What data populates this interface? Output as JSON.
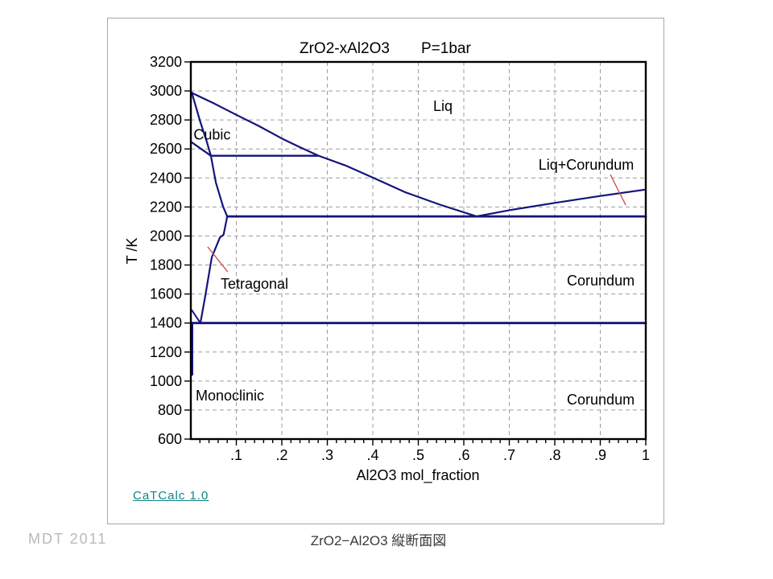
{
  "slide": {
    "credit": "MDT  2011",
    "caption": "ZrO2−Al2O3  縦断面図",
    "app_link": "CaTCalc 1.0"
  },
  "chart_data": {
    "type": "line",
    "title": "ZrO2-xAl2O3    P=1bar",
    "title_main": "ZrO2-xAl2O3",
    "title_pressure": "P=1bar",
    "xlabel": "Al2O3 mol_fraction",
    "ylabel": "T /K",
    "xlim": [
      0,
      1
    ],
    "ylim": [
      600,
      3200
    ],
    "x_major_ticks": [
      0.1,
      0.2,
      0.3,
      0.4,
      0.5,
      0.6,
      0.7,
      0.8,
      0.9,
      1
    ],
    "x_tick_labels": [
      ".1",
      ".2",
      ".3",
      ".4",
      ".5",
      ".6",
      ".7",
      ".8",
      ".9",
      "1"
    ],
    "x_minor_step": 0.02,
    "y_major_ticks": [
      600,
      800,
      1000,
      1200,
      1400,
      1600,
      1800,
      2000,
      2200,
      2400,
      2600,
      2800,
      3000,
      3200
    ],
    "grid": {
      "style": "dashed",
      "color": "#9c9c9c",
      "x_lines": [
        0.1,
        0.2,
        0.3,
        0.4,
        0.5,
        0.6,
        0.7,
        0.8,
        0.9
      ],
      "y_lines": [
        800,
        1000,
        1200,
        1400,
        1600,
        1800,
        2000,
        2200,
        2400,
        2600,
        2800,
        3000
      ]
    },
    "line_color": "#14147c",
    "leader_color": "#cc5555",
    "border_color": "#000000",
    "eutectic_point": {
      "x": 0.628,
      "T": 2135
    },
    "series": [
      {
        "name": "liquidus-left",
        "width": 2.2,
        "points": [
          [
            0,
            2990
          ],
          [
            0.05,
            2915
          ],
          [
            0.1,
            2835
          ],
          [
            0.15,
            2757
          ],
          [
            0.2,
            2672
          ],
          [
            0.24,
            2612
          ],
          [
            0.28,
            2554
          ],
          [
            0.34,
            2486
          ],
          [
            0.407,
            2393
          ],
          [
            0.47,
            2303
          ],
          [
            0.55,
            2213
          ],
          [
            0.628,
            2135
          ]
        ]
      },
      {
        "name": "liquidus-right",
        "width": 2.2,
        "points": [
          [
            0.628,
            2135
          ],
          [
            0.7,
            2178
          ],
          [
            0.8,
            2228
          ],
          [
            0.9,
            2276
          ],
          [
            1.0,
            2320
          ]
        ]
      },
      {
        "name": "cubic-solidus",
        "width": 2.2,
        "points": [
          [
            0.002,
            2990
          ],
          [
            0.02,
            2795
          ],
          [
            0.035,
            2650
          ],
          [
            0.044,
            2553
          ]
        ]
      },
      {
        "name": "cubic-tetragonal-boundary",
        "width": 2.2,
        "points": [
          [
            0,
            2650
          ],
          [
            0.044,
            2553
          ]
        ]
      },
      {
        "name": "transition-line-2553",
        "width": 2.4,
        "points": [
          [
            0.044,
            2553
          ],
          [
            0.28,
            2553
          ]
        ]
      },
      {
        "name": "tetragonal-solvus",
        "width": 2.2,
        "points": [
          [
            0.044,
            2553
          ],
          [
            0.055,
            2368
          ],
          [
            0.071,
            2202
          ],
          [
            0.08,
            2135
          ],
          [
            0.072,
            2010
          ],
          [
            0.064,
            1991
          ],
          [
            0.046,
            1853
          ],
          [
            0.032,
            1592
          ],
          [
            0.021,
            1400
          ]
        ]
      },
      {
        "name": "eutectic-line-2135",
        "width": 2.8,
        "points": [
          [
            0.08,
            2135
          ],
          [
            1,
            2135
          ]
        ]
      },
      {
        "name": "monoclinic-transition-1400",
        "width": 2.8,
        "points": [
          [
            0,
            1400
          ],
          [
            1,
            1400
          ]
        ]
      },
      {
        "name": "tetragonal-monoclinic-wedge",
        "width": 2.0,
        "points": [
          [
            0.002,
            1490
          ],
          [
            0.021,
            1400
          ]
        ]
      },
      {
        "name": "monoclinic-boundary-axis",
        "width": 2.6,
        "points": [
          [
            0.003,
            1400
          ],
          [
            0.003,
            1045
          ]
        ]
      }
    ],
    "phase_labels": [
      {
        "id": "liq",
        "text": "Liq",
        "x": 0.554,
        "T": 2862,
        "anchor": "middle"
      },
      {
        "id": "cubic",
        "text": "Cubic",
        "x": 0.006,
        "T": 2665,
        "anchor": "start"
      },
      {
        "id": "liq-corundum",
        "text": "Liq+Corundum",
        "x": 0.869,
        "T": 2457,
        "anchor": "middle"
      },
      {
        "id": "tetragonal",
        "text": "Tetragonal",
        "x": 0.0655,
        "T": 1637,
        "anchor": "start"
      },
      {
        "id": "corundum-upper",
        "text": "Corundum",
        "x": 0.901,
        "T": 1659,
        "anchor": "middle"
      },
      {
        "id": "monoclinic",
        "text": "Monoclinic",
        "x": 0.0106,
        "T": 866,
        "anchor": "start"
      },
      {
        "id": "corundum-lower",
        "text": "Corundum",
        "x": 0.901,
        "T": 838,
        "anchor": "middle"
      }
    ],
    "leader_lines": [
      {
        "id": "tetragonal-leader",
        "x1": 0.037,
        "T1": 1925,
        "x2": 0.081,
        "T2": 1753
      },
      {
        "id": "liq-corundum-leader",
        "x1": 0.922,
        "T1": 2424,
        "x2": 0.956,
        "T2": 2213
      }
    ]
  }
}
